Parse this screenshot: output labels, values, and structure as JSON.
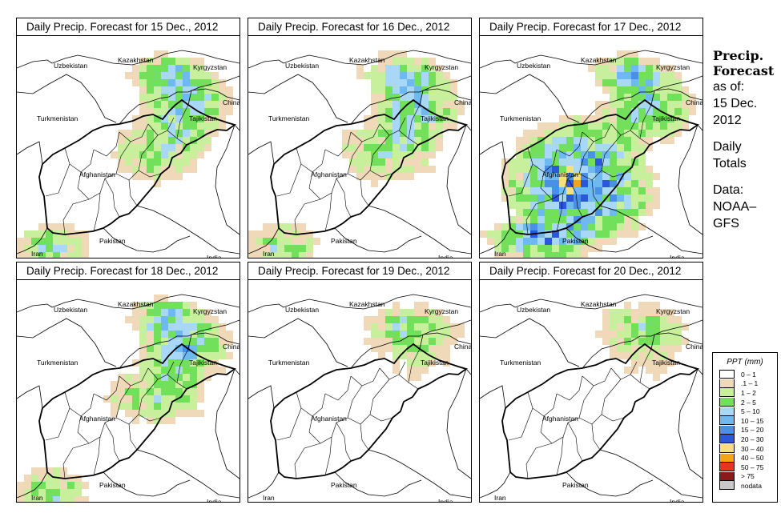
{
  "panels": [
    {
      "title": "Daily Precip. Forecast for  15 Dec., 2012",
      "precip_level": "moderate"
    },
    {
      "title": "Daily Precip. Forecast for  16 Dec., 2012",
      "precip_level": "moderate"
    },
    {
      "title": "Daily Precip. Forecast for  17 Dec., 2012",
      "precip_level": "heavy"
    },
    {
      "title": "Daily Precip. Forecast for  18 Dec., 2012",
      "precip_level": "moderate"
    },
    {
      "title": "Daily Precip. Forecast for  19 Dec., 2012",
      "precip_level": "light"
    },
    {
      "title": "Daily Precip. Forecast for  20 Dec., 2012",
      "precip_level": "light"
    }
  ],
  "labels": {
    "uzbekistan": "Uzbekistan",
    "kazakhstan": "Kazakhstan",
    "kyrgyzstan": "Kyrgyzstan",
    "turkmenistan": "Turkmenistan",
    "china": "China",
    "tajikistan": "Tajikistan",
    "afghanistan": "Afghanistan",
    "iran": "Iran",
    "pakistan": "Pakistan",
    "india": "India"
  },
  "sidebar": {
    "heading1": "Precip.",
    "heading2": "Forecast",
    "line1": "as of:",
    "line2": "15 Dec.",
    "line3": "2012",
    "line4": "Daily",
    "line5": "Totals",
    "line6": "Data:",
    "line7": "NOAA–",
    "line8": "GFS"
  },
  "legend": {
    "title": "PPT (mm)",
    "items": [
      {
        "label": "0 – 1",
        "color": "#ffffff"
      },
      {
        "label": ".1 – 1",
        "color": "#efd9b8"
      },
      {
        "label": "1 – 2",
        "color": "#c8f09c"
      },
      {
        "label": "2 – 5",
        "color": "#73e05b"
      },
      {
        "label": "5 – 10",
        "color": "#a8d8f5"
      },
      {
        "label": "10 – 15",
        "color": "#6eb9f0"
      },
      {
        "label": "15 – 20",
        "color": "#4a90e8"
      },
      {
        "label": "20 – 30",
        "color": "#2a58d8"
      },
      {
        "label": "30 – 40",
        "color": "#f5e07a"
      },
      {
        "label": "40 – 50",
        "color": "#f5a418"
      },
      {
        "label": "50 – 75",
        "color": "#e8351c"
      },
      {
        "label": "> 75",
        "color": "#8c1a1a"
      },
      {
        "label": "nodata",
        "color": "#c8c8c8"
      }
    ]
  }
}
